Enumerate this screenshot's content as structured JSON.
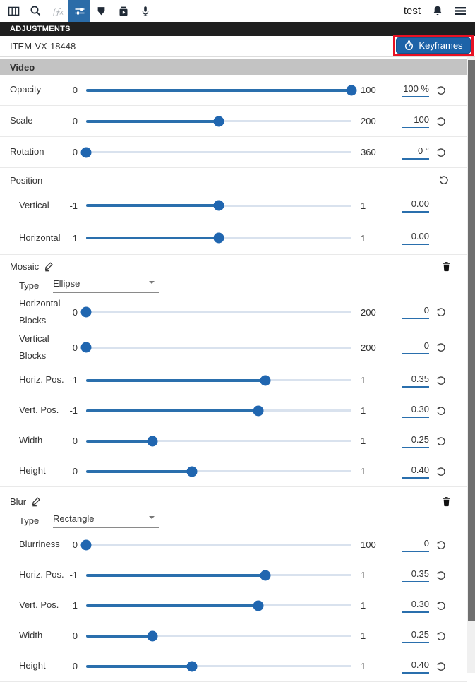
{
  "toolbar": {
    "left_icons": [
      {
        "name": "filmstrip-icon"
      },
      {
        "name": "search-icon"
      },
      {
        "name": "effects-icon",
        "disabled": true
      },
      {
        "name": "adjustments-icon",
        "active": true
      },
      {
        "name": "marker-icon"
      },
      {
        "name": "export-video-icon"
      },
      {
        "name": "microphone-icon"
      }
    ],
    "user_label": "test",
    "right_icons": [
      {
        "name": "bell-icon"
      },
      {
        "name": "hamburger-menu-icon"
      }
    ]
  },
  "panel": {
    "title": "ADJUSTMENTS",
    "item_id": "ITEM-VX-18448",
    "keyframes_label": "Keyframes",
    "keyframes_icon": "stopwatch-icon"
  },
  "colors": {
    "accent_blue": "#2a6fad",
    "toolbar_active_blue": "#2b6ca8",
    "button_blue": "#1d63a8",
    "highlight_red": "#e81123",
    "section_header_gray": "#c3c3c3",
    "titlebar_black": "#1f1f1f",
    "slider_rail": "#d9e2ee",
    "scrollbar_thumb": "#707070"
  },
  "sections": {
    "video": {
      "title": "Video"
    },
    "position": {
      "title": "Position"
    },
    "mosaic": {
      "title": "Mosaic",
      "type_label": "Type",
      "type_value": "Ellipse"
    },
    "blur": {
      "title": "Blur",
      "type_label": "Type",
      "type_value": "Rectangle"
    }
  },
  "rows": {
    "opacity": {
      "label": "Opacity",
      "min": "0",
      "max": "100",
      "value": "100 %",
      "percent": 100
    },
    "scale": {
      "label": "Scale",
      "min": "0",
      "max": "200",
      "value": "100",
      "percent": 50
    },
    "rotation": {
      "label": "Rotation",
      "min": "0",
      "max": "360",
      "value": "0 °",
      "percent": 0
    },
    "vertical": {
      "label": "Vertical",
      "min": "-1",
      "max": "1",
      "value": "0.00",
      "percent": 50
    },
    "horizontal": {
      "label": "Horizontal",
      "min": "-1",
      "max": "1",
      "value": "0.00",
      "percent": 50
    },
    "h_blocks": {
      "label": "Horizontal Blocks",
      "min": "0",
      "max": "200",
      "value": "0",
      "percent": 0
    },
    "v_blocks": {
      "label": "Vertical Blocks",
      "min": "0",
      "max": "200",
      "value": "0",
      "percent": 0
    },
    "m_hpos": {
      "label": "Horiz. Pos.",
      "min": "-1",
      "max": "1",
      "value": "0.35",
      "percent": 67.5
    },
    "m_vpos": {
      "label": "Vert. Pos.",
      "min": "-1",
      "max": "1",
      "value": "0.30",
      "percent": 65
    },
    "m_width": {
      "label": "Width",
      "min": "0",
      "max": "1",
      "value": "0.25",
      "percent": 25
    },
    "m_height": {
      "label": "Height",
      "min": "0",
      "max": "1",
      "value": "0.40",
      "percent": 40
    },
    "blurriness": {
      "label": "Blurriness",
      "min": "0",
      "max": "100",
      "value": "0",
      "percent": 0
    },
    "b_hpos": {
      "label": "Horiz. Pos.",
      "min": "-1",
      "max": "1",
      "value": "0.35",
      "percent": 67.5
    },
    "b_vpos": {
      "label": "Vert. Pos.",
      "min": "-1",
      "max": "1",
      "value": "0.30",
      "percent": 65
    },
    "b_width": {
      "label": "Width",
      "min": "0",
      "max": "1",
      "value": "0.25",
      "percent": 25
    },
    "b_height": {
      "label": "Height",
      "min": "0",
      "max": "1",
      "value": "0.40",
      "percent": 40
    }
  }
}
